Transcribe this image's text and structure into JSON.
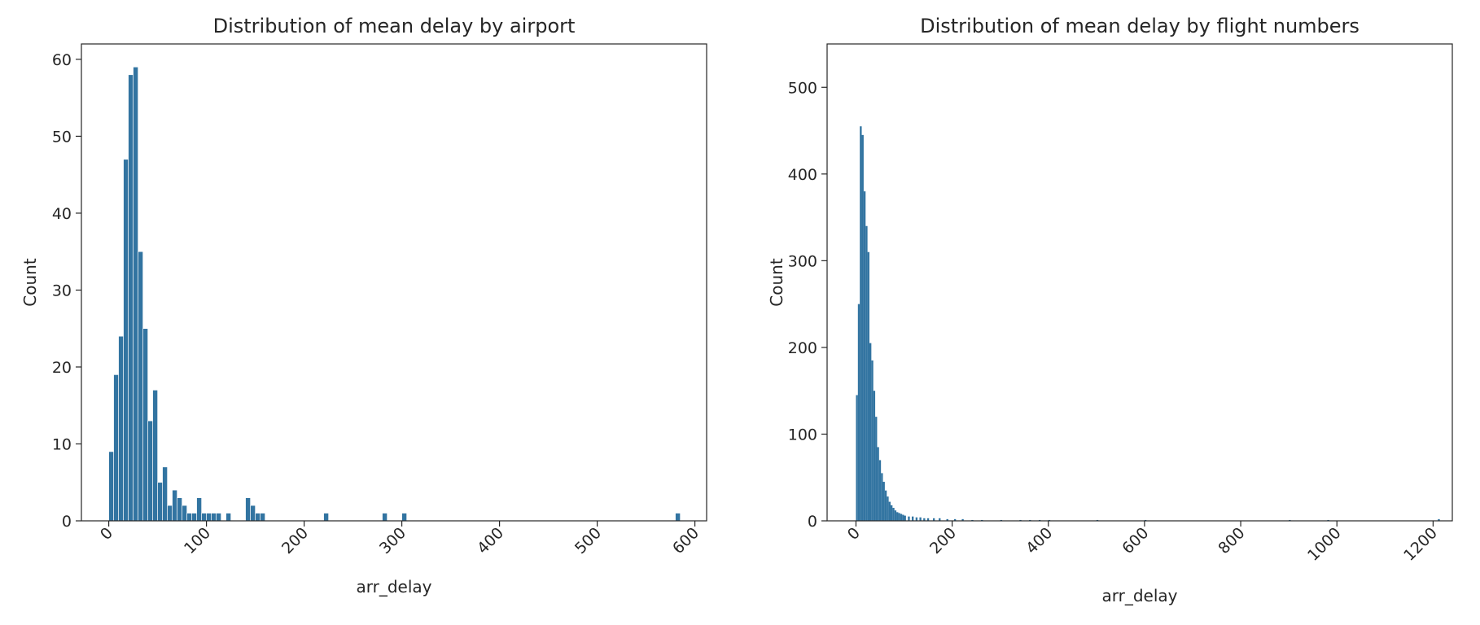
{
  "chart_data": [
    {
      "type": "bar",
      "title": "Distribution of mean delay by airport",
      "xlabel": "arr_delay",
      "ylabel": "Count",
      "xlim": [
        -28,
        612
      ],
      "ylim": [
        0,
        62
      ],
      "xticks": [
        0,
        100,
        200,
        300,
        400,
        500,
        600
      ],
      "yticks": [
        0,
        10,
        20,
        30,
        40,
        50,
        60
      ],
      "xtick_rotation": 45,
      "grid": false,
      "color": "#3274a1",
      "bin_width": 5,
      "series": [
        {
          "bin_starts": [
            0,
            5,
            10,
            15,
            20,
            25,
            30,
            35,
            40,
            45,
            50,
            55,
            60,
            65,
            70,
            75,
            80,
            85,
            90,
            95,
            100,
            105,
            110,
            120,
            140,
            145,
            150,
            155,
            220,
            280,
            300,
            580
          ],
          "values": [
            9,
            19,
            24,
            47,
            58,
            59,
            35,
            25,
            13,
            17,
            5,
            7,
            2,
            4,
            3,
            2,
            1,
            1,
            3,
            1,
            1,
            1,
            1,
            1,
            3,
            2,
            1,
            1,
            1,
            1,
            1,
            1
          ]
        }
      ]
    },
    {
      "type": "bar",
      "title": "Distribution of mean delay by flight numbers",
      "xlabel": "arr_delay",
      "ylabel": "Count",
      "xlim": [
        -60,
        1240
      ],
      "ylim": [
        0,
        550
      ],
      "xticks": [
        0,
        200,
        400,
        600,
        800,
        1000,
        1200
      ],
      "yticks": [
        0,
        100,
        200,
        300,
        400,
        500
      ],
      "xtick_rotation": 45,
      "grid": false,
      "color": "#3274a1",
      "bin_width": 4,
      "series": [
        {
          "bin_starts": [
            0,
            4,
            8,
            12,
            16,
            20,
            24,
            28,
            32,
            36,
            40,
            44,
            48,
            52,
            56,
            60,
            64,
            68,
            72,
            76,
            80,
            84,
            88,
            92,
            96,
            100,
            108,
            116,
            124,
            132,
            140,
            148,
            160,
            172,
            188,
            204,
            220,
            240,
            260,
            300,
            340,
            360,
            380,
            400,
            500,
            600,
            900,
            980,
            1210
          ],
          "values": [
            145,
            250,
            455,
            445,
            380,
            340,
            310,
            205,
            185,
            150,
            120,
            85,
            70,
            55,
            45,
            35,
            28,
            22,
            18,
            15,
            12,
            10,
            9,
            8,
            7,
            6,
            5,
            5,
            4,
            4,
            3,
            3,
            3,
            3,
            2,
            2,
            2,
            1,
            1,
            1,
            1,
            1,
            1,
            1,
            1,
            1,
            1,
            1,
            2
          ]
        }
      ]
    }
  ]
}
